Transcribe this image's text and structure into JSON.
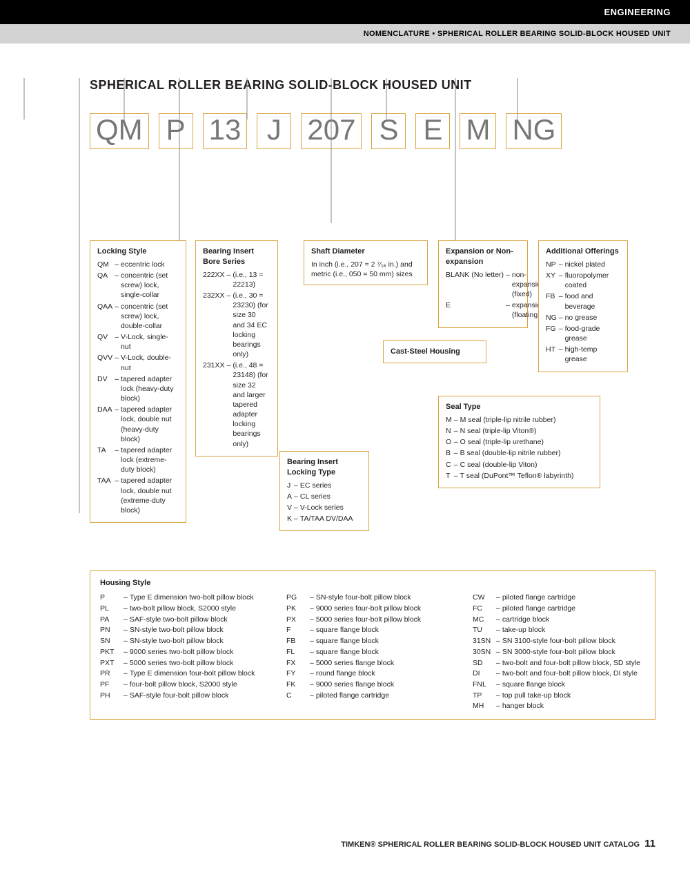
{
  "header": {
    "section": "ENGINEERING",
    "breadcrumb": "NOMENCLATURE • SPHERICAL ROLLER BEARING SOLID-BLOCK HOUSED UNIT"
  },
  "page_title": "SPHERICAL ROLLER BEARING SOLID-BLOCK HOUSED UNIT",
  "code_parts": [
    "QM",
    "P",
    "13",
    "J",
    "207",
    "S",
    "E",
    "M",
    "NG"
  ],
  "boxes": {
    "locking_style": {
      "title": "Locking Style",
      "rows": [
        [
          "QM",
          "eccentric lock"
        ],
        [
          "QA",
          "concentric (set screw) lock, single-collar"
        ],
        [
          "QAA",
          "concentric (set screw) lock, double-collar"
        ],
        [
          "QV",
          "V-Lock, single-nut"
        ],
        [
          "QVV",
          "V-Lock, double-nut"
        ],
        [
          "DV",
          "tapered adapter lock (heavy-duty block)"
        ],
        [
          "DAA",
          "tapered adapter lock, double nut (heavy-duty block)"
        ],
        [
          "TA",
          "tapered adapter lock (extreme-duty block)"
        ],
        [
          "TAA",
          "tapered adapter lock, double nut (extreme-duty block)"
        ]
      ]
    },
    "bore_series": {
      "title": "Bearing Insert Bore Series",
      "rows": [
        [
          "222XX",
          "(i.e., 13 = 22213)"
        ],
        [
          "232XX",
          "(i.e., 30 = 23230) (for size 30 and 34 EC locking bearings only)"
        ],
        [
          "231XX",
          "(i.e., 48 = 23148) (for size 32 and larger tapered adapter locking bearings only)"
        ]
      ]
    },
    "locking_type": {
      "title": "Bearing Insert Locking Type",
      "rows": [
        [
          "J",
          "EC series"
        ],
        [
          "A",
          "CL series"
        ],
        [
          "V",
          "V-Lock series"
        ],
        [
          "K",
          "TA/TAA DV/DAA"
        ]
      ]
    },
    "shaft_diameter": {
      "title": "Shaft Diameter",
      "text": "In inch (i.e., 207 = 2 ⁷⁄₁₆ in.) and metric (i.e., 050 = 50 mm) sizes"
    },
    "cast_steel": "Cast-Steel Housing",
    "expansion": {
      "title": "Expansion or Non-expansion",
      "rows": [
        [
          "BLANK (No letter)",
          "non-expansion (fixed)"
        ],
        [
          "E",
          "expansion (floating)"
        ]
      ]
    },
    "seal_type": {
      "title": "Seal Type",
      "rows": [
        [
          "M",
          "M seal (triple-lip nitrile rubber)"
        ],
        [
          "N",
          "N seal (triple-lip Viton®)"
        ],
        [
          "O",
          "O seal (triple-lip urethane)"
        ],
        [
          "B",
          "B seal (double-lip nitrile rubber)"
        ],
        [
          "C",
          "C seal (double-lip Viton)"
        ],
        [
          "T",
          "T seal (DuPont™ Teflon® labyrinth)"
        ]
      ]
    },
    "additional": {
      "title": "Additional Offerings",
      "rows": [
        [
          "NP",
          "nickel plated"
        ],
        [
          "XY",
          "fluoropolymer coated"
        ],
        [
          "FB",
          "food and beverage"
        ],
        [
          "NG",
          "no grease"
        ],
        [
          "FG",
          "food-grade grease"
        ],
        [
          "HT",
          "high-temp grease"
        ]
      ]
    },
    "housing": {
      "title": "Housing Style",
      "cols": [
        [
          [
            "P",
            "Type E dimension two-bolt pillow block"
          ],
          [
            "PL",
            "two-bolt pillow block, S2000 style"
          ],
          [
            "PA",
            "SAF-style two-bolt pillow block"
          ],
          [
            "PN",
            "SN-style two-bolt pillow block"
          ],
          [
            "SN",
            "SN-style two-bolt pillow block"
          ],
          [
            "PKT",
            "9000 series two-bolt pillow block"
          ],
          [
            "PXT",
            "5000 series two-bolt pillow block"
          ],
          [
            "PR",
            "Type E dimension four-bolt pillow block"
          ],
          [
            "PF",
            "four-bolt pillow block, S2000 style"
          ],
          [
            "PH",
            "SAF-style four-bolt pillow block"
          ]
        ],
        [
          [
            "PG",
            "SN-style four-bolt pillow block"
          ],
          [
            "PK",
            "9000 series four-bolt pillow block"
          ],
          [
            "PX",
            "5000 series four-bolt pillow block"
          ],
          [
            "F",
            "square flange block"
          ],
          [
            "FB",
            "square flange block"
          ],
          [
            "FL",
            "square flange block"
          ],
          [
            "FX",
            "5000 series flange block"
          ],
          [
            "FY",
            "round flange block"
          ],
          [
            "FK",
            "9000 series flange block"
          ],
          [
            "C",
            "piloted flange cartridge"
          ]
        ],
        [
          [
            "CW",
            "piloted flange cartridge"
          ],
          [
            "FC",
            "piloted flange cartridge"
          ],
          [
            "MC",
            "cartridge block"
          ],
          [
            "TU",
            "take-up block"
          ],
          [
            "31SN",
            "SN 3100-style four-bolt pillow block"
          ],
          [
            "30SN",
            "SN 3000-style four-bolt pillow block"
          ],
          [
            "SD",
            "two-bolt and four-bolt pillow block, SD style"
          ],
          [
            "DI",
            "two-bolt and four-bolt pillow block, DI style"
          ],
          [
            "FNL",
            "square flange block"
          ],
          [
            "TP",
            "top pull take-up block"
          ],
          [
            "MH",
            "hanger block"
          ]
        ]
      ]
    }
  },
  "colors": {
    "box_border": "#d9a441",
    "code_text": "#777777",
    "text": "#231f20"
  },
  "footer": {
    "text": "TIMKEN® SPHERICAL ROLLER BEARING SOLID-BLOCK HOUSED UNIT CATALOG",
    "page": "11"
  }
}
